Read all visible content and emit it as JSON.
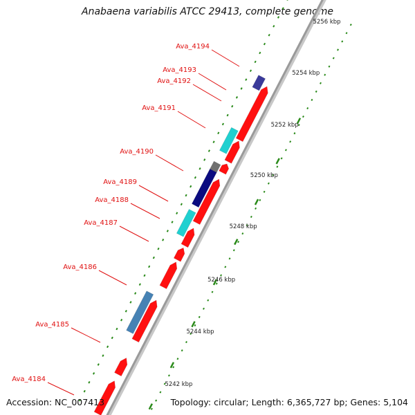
{
  "header": {
    "title": "Anabaena variabilis ATCC 29413, complete genome"
  },
  "footer": {
    "accession": "Accession: NC_007413",
    "summary": "Topology: circular; Length: 6,365,727 bp; Genes: 5,104"
  },
  "colors": {
    "forward_gene": "#ff1010",
    "cyan_gene": "#20d0d0",
    "navy_gene": "#0b0b80",
    "steel_gene": "#4682b4",
    "gray_gene": "#707070",
    "label": "#e01010",
    "tick": "#2a8a1a",
    "backbone": "#9a9a9a"
  },
  "gene_labels": [
    "Ava_4194",
    "Ava_4193",
    "Ava_4192",
    "Ava_4191",
    "Ava_4190",
    "Ava_4189",
    "Ava_4188",
    "Ava_4187",
    "Ava_4186",
    "Ava_4185",
    "Ava_4184"
  ],
  "scale_labels": [
    "5256 kbp",
    "5254 kbp",
    "5252 kbp",
    "5250 kbp",
    "5248 kbp",
    "5246 kbp",
    "5244 kbp",
    "5242 kbp"
  ]
}
